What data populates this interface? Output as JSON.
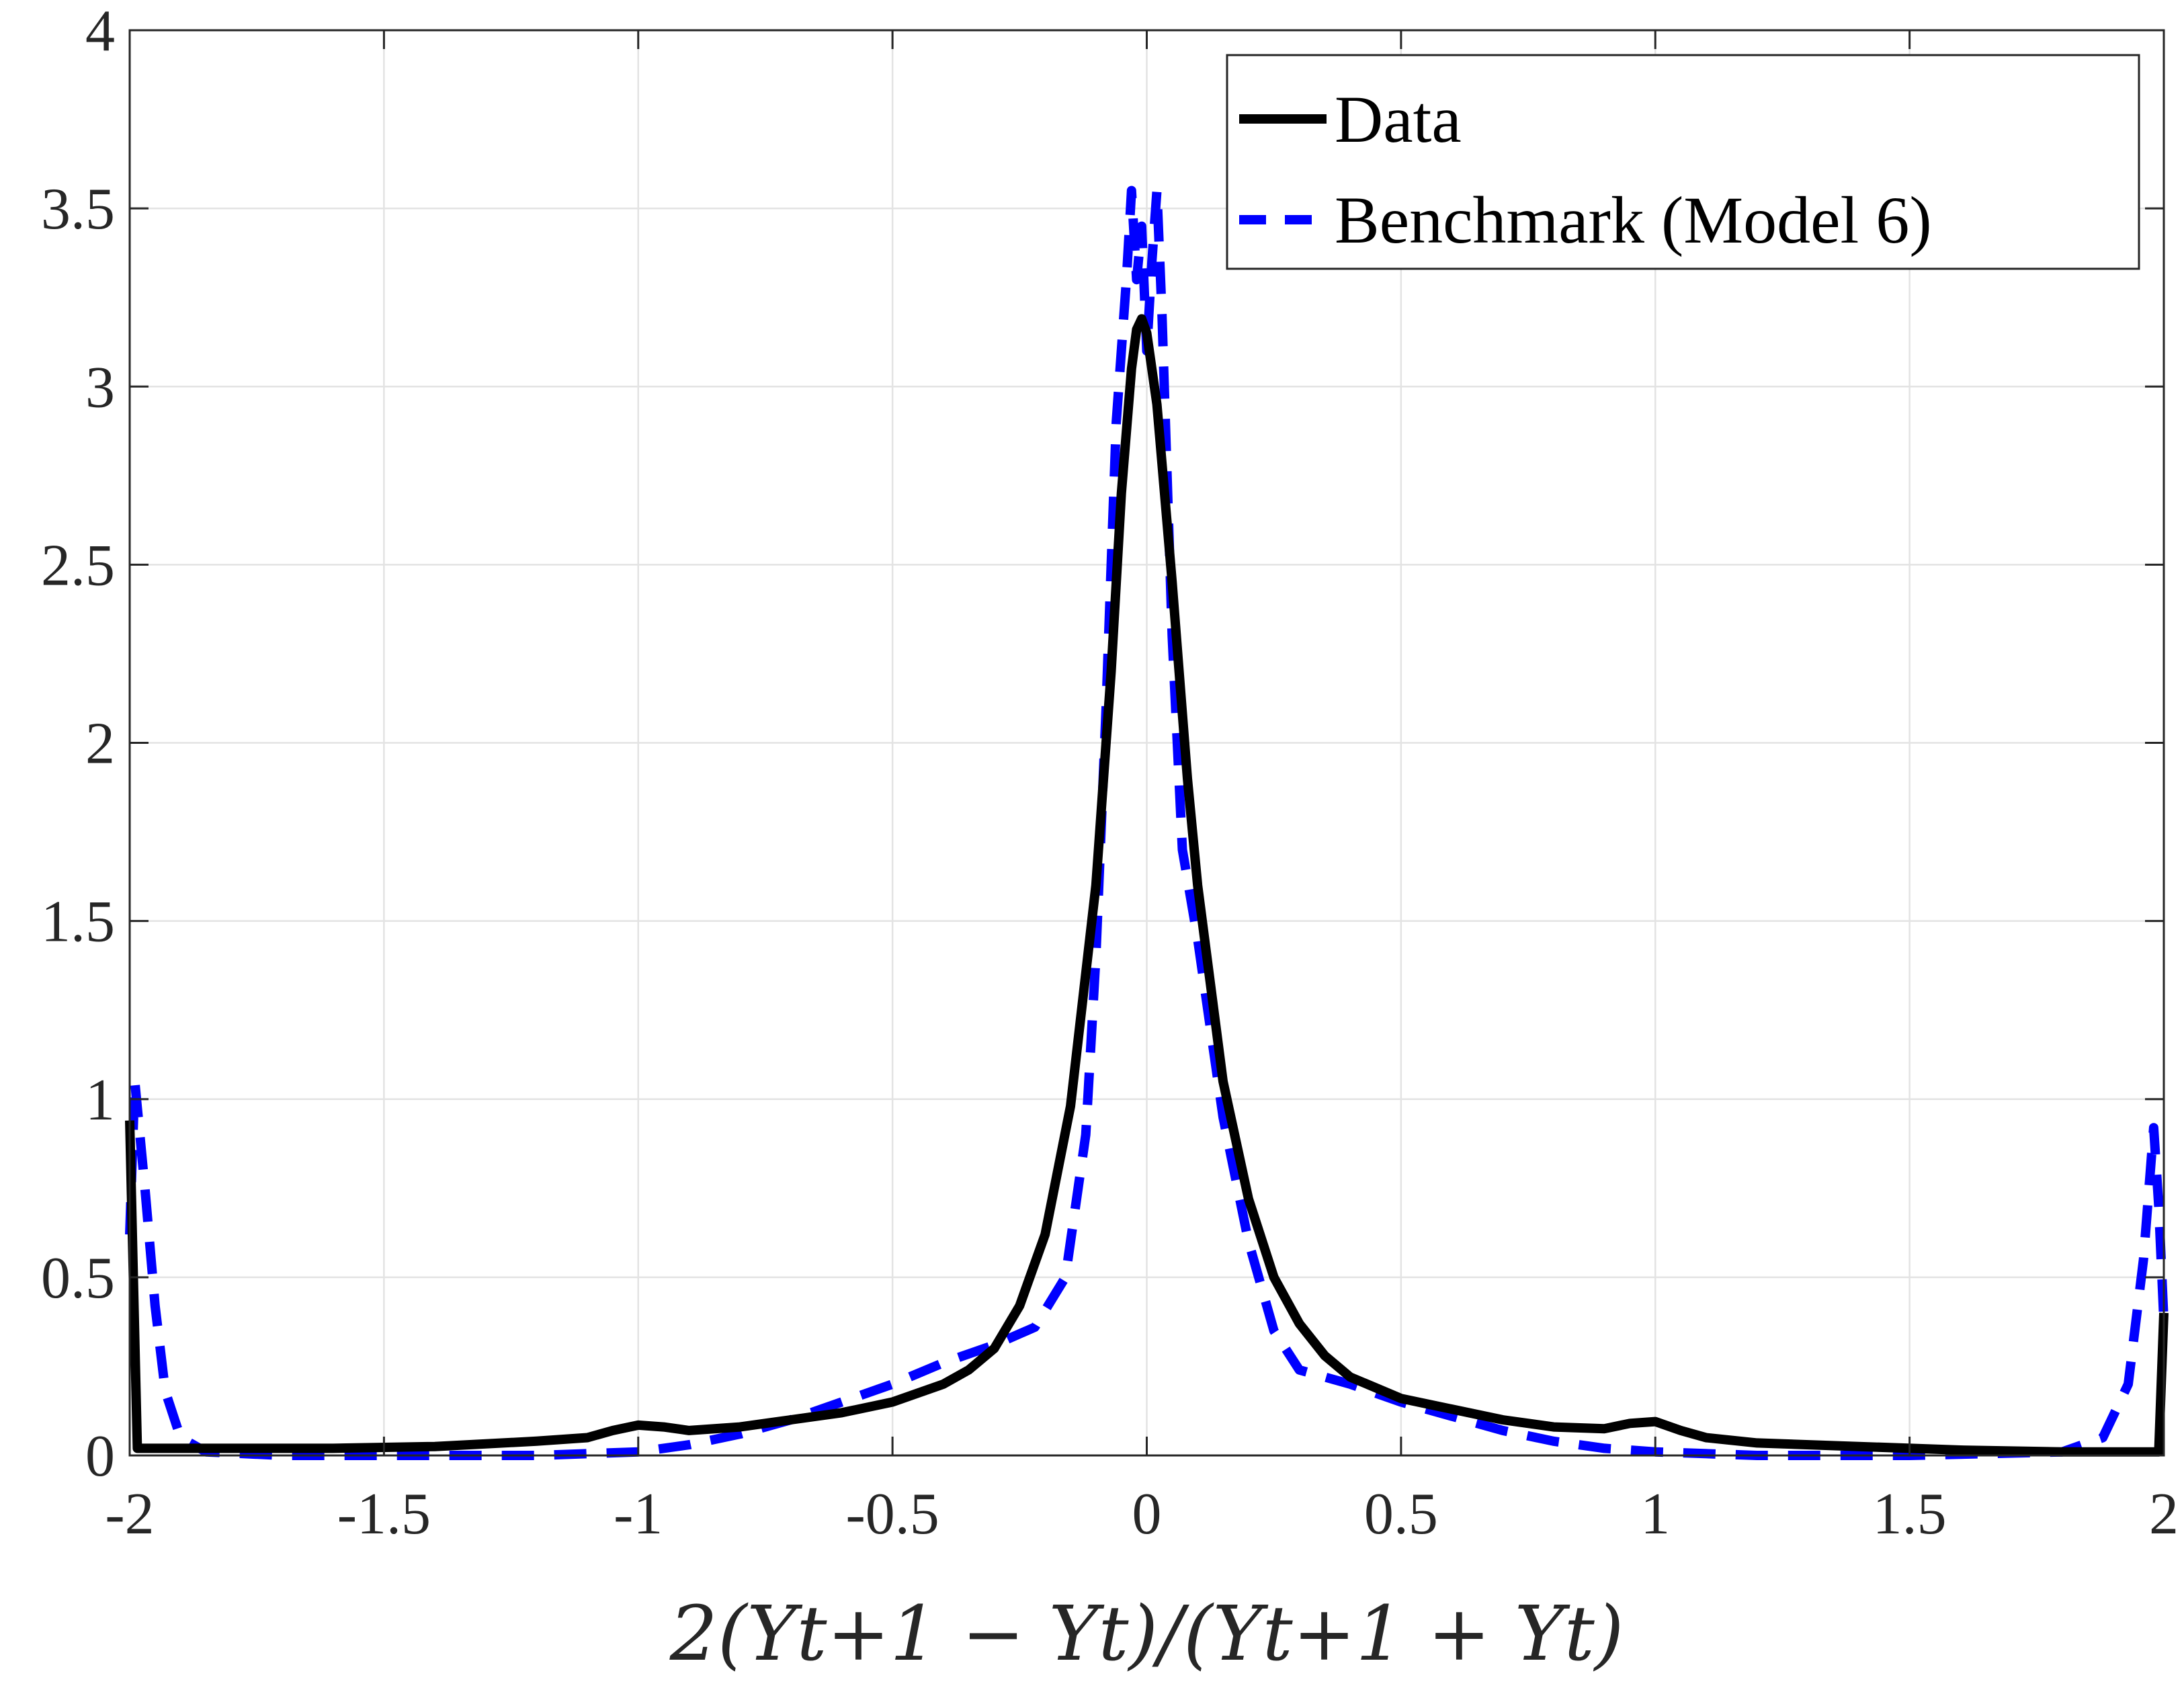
{
  "chart_data": {
    "type": "line",
    "title": "",
    "xlabel": "2(Y_{t+1} − Y_t)/(Y_{t+1} + Y_t)",
    "xlabel_display": "2(Yt+1 − Yt)/(Yt+1 + Yt)",
    "ylabel": "",
    "xlim": [
      -2,
      2
    ],
    "ylim": [
      0,
      4
    ],
    "grid": true,
    "legend_position": "top-right",
    "x_ticks": [
      -2,
      -1.5,
      -1,
      -0.5,
      0,
      0.5,
      1,
      1.5,
      2
    ],
    "x_tick_labels": [
      "-2",
      "-1.5",
      "-1",
      "-0.5",
      "0",
      "0.5",
      "1",
      "1.5",
      "2"
    ],
    "y_ticks": [
      0,
      0.5,
      1,
      1.5,
      2,
      2.5,
      3,
      3.5,
      4
    ],
    "y_tick_labels": [
      "0",
      "0.5",
      "1",
      "1.5",
      "2",
      "2.5",
      "3",
      "3.5",
      "4"
    ],
    "series": [
      {
        "name": "Data",
        "color": "#000000",
        "style": "solid",
        "points": [
          [
            -2,
            0.94
          ],
          [
            -1.985,
            0.02
          ],
          [
            -1.9,
            0.02
          ],
          [
            -1.8,
            0.02
          ],
          [
            -1.6,
            0.02
          ],
          [
            -1.4,
            0.025
          ],
          [
            -1.2,
            0.04
          ],
          [
            -1.1,
            0.05
          ],
          [
            -1.05,
            0.07
          ],
          [
            -1.0,
            0.085
          ],
          [
            -0.95,
            0.08
          ],
          [
            -0.9,
            0.07
          ],
          [
            -0.8,
            0.08
          ],
          [
            -0.7,
            0.1
          ],
          [
            -0.6,
            0.12
          ],
          [
            -0.5,
            0.15
          ],
          [
            -0.4,
            0.2
          ],
          [
            -0.35,
            0.24
          ],
          [
            -0.3,
            0.3
          ],
          [
            -0.25,
            0.42
          ],
          [
            -0.2,
            0.62
          ],
          [
            -0.15,
            0.98
          ],
          [
            -0.1,
            1.6
          ],
          [
            -0.07,
            2.2
          ],
          [
            -0.05,
            2.7
          ],
          [
            -0.03,
            3.05
          ],
          [
            -0.02,
            3.16
          ],
          [
            -0.01,
            3.19
          ],
          [
            0.0,
            3.15
          ],
          [
            0.02,
            2.95
          ],
          [
            0.05,
            2.45
          ],
          [
            0.08,
            1.9
          ],
          [
            0.1,
            1.6
          ],
          [
            0.15,
            1.05
          ],
          [
            0.2,
            0.72
          ],
          [
            0.25,
            0.5
          ],
          [
            0.3,
            0.37
          ],
          [
            0.35,
            0.28
          ],
          [
            0.4,
            0.22
          ],
          [
            0.5,
            0.16
          ],
          [
            0.6,
            0.13
          ],
          [
            0.7,
            0.1
          ],
          [
            0.8,
            0.08
          ],
          [
            0.9,
            0.075
          ],
          [
            0.95,
            0.09
          ],
          [
            1.0,
            0.095
          ],
          [
            1.05,
            0.07
          ],
          [
            1.1,
            0.05
          ],
          [
            1.2,
            0.035
          ],
          [
            1.4,
            0.025
          ],
          [
            1.6,
            0.015
          ],
          [
            1.8,
            0.01
          ],
          [
            1.99,
            0.01
          ],
          [
            2,
            0.4
          ]
        ]
      },
      {
        "name": "Benchmark (Model 6)",
        "color": "#0000ff",
        "style": "dashed",
        "points": [
          [
            -2,
            0.62
          ],
          [
            -1.99,
            1.05
          ],
          [
            -1.97,
            0.75
          ],
          [
            -1.95,
            0.42
          ],
          [
            -1.93,
            0.18
          ],
          [
            -1.9,
            0.05
          ],
          [
            -1.85,
            0.01
          ],
          [
            -1.7,
            0.0
          ],
          [
            -1.5,
            0.0
          ],
          [
            -1.2,
            0.0
          ],
          [
            -1.0,
            0.01
          ],
          [
            -0.9,
            0.03
          ],
          [
            -0.8,
            0.06
          ],
          [
            -0.7,
            0.1
          ],
          [
            -0.6,
            0.15
          ],
          [
            -0.5,
            0.2
          ],
          [
            -0.4,
            0.26
          ],
          [
            -0.3,
            0.31
          ],
          [
            -0.22,
            0.36
          ],
          [
            -0.16,
            0.5
          ],
          [
            -0.12,
            0.9
          ],
          [
            -0.1,
            1.4
          ],
          [
            -0.08,
            2.1
          ],
          [
            -0.06,
            2.9
          ],
          [
            -0.04,
            3.3
          ],
          [
            -0.03,
            3.55
          ],
          [
            -0.02,
            3.3
          ],
          [
            -0.01,
            3.45
          ],
          [
            0.0,
            3.1
          ],
          [
            0.01,
            3.35
          ],
          [
            0.02,
            3.55
          ],
          [
            0.03,
            3.2
          ],
          [
            0.05,
            2.3
          ],
          [
            0.07,
            1.7
          ],
          [
            0.1,
            1.45
          ],
          [
            0.15,
            0.95
          ],
          [
            0.2,
            0.6
          ],
          [
            0.25,
            0.35
          ],
          [
            0.3,
            0.24
          ],
          [
            0.4,
            0.2
          ],
          [
            0.5,
            0.15
          ],
          [
            0.6,
            0.11
          ],
          [
            0.7,
            0.07
          ],
          [
            0.8,
            0.04
          ],
          [
            0.9,
            0.02
          ],
          [
            1.0,
            0.01
          ],
          [
            1.2,
            0.0
          ],
          [
            1.5,
            0.0
          ],
          [
            1.8,
            0.01
          ],
          [
            1.88,
            0.05
          ],
          [
            1.93,
            0.2
          ],
          [
            1.96,
            0.55
          ],
          [
            1.98,
            0.92
          ],
          [
            1.99,
            0.7
          ],
          [
            2,
            0.38
          ]
        ]
      }
    ]
  }
}
